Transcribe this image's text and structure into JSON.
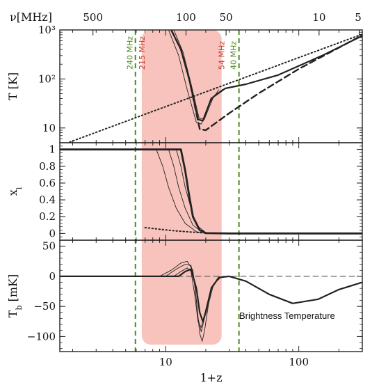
{
  "chart_data": {
    "type": "line",
    "x_axis": {
      "label": "1+z",
      "scale": "log",
      "range": [
        1.6,
        300
      ],
      "ticks": [
        10,
        100
      ],
      "tick_labels": [
        "10",
        "100"
      ]
    },
    "top_axis": {
      "label": "ν[MHz]",
      "ticks_mhz": [
        500,
        100,
        50,
        10,
        5
      ],
      "tick_labels": [
        "500",
        "100",
        "50",
        "10",
        "5"
      ]
    },
    "shaded_band": {
      "from_mhz": 215,
      "to_mhz": 54,
      "color": "#f7c3bc"
    },
    "reference_lines": [
      {
        "label": "240 MHz",
        "mhz": 240,
        "style": "dashed",
        "color": "#4f8a1e"
      },
      {
        "label": "215 MHz",
        "mhz": 215,
        "style": "label-only",
        "color": "#c8392b"
      },
      {
        "label": "54 MHz",
        "mhz": 54,
        "style": "label-only",
        "color": "#c8392b"
      },
      {
        "label": "40 MHz",
        "mhz": 40,
        "style": "dashed",
        "color": "#4f8a1e"
      }
    ],
    "panels": [
      {
        "id": "temperature",
        "ylabel": "T [K]",
        "yscale": "log",
        "ylim": [
          5,
          1000
        ],
        "yticks": [
          10,
          100,
          1000
        ],
        "ytick_labels": [
          "10",
          "10²",
          "10³"
        ],
        "series": [
          {
            "style": "dotted",
            "points": [
              [
                1.7,
                4.6
              ],
              [
                5,
                13.6
              ],
              [
                10,
                27.3
              ],
              [
                50,
                136
              ],
              [
                100,
                273
              ],
              [
                300,
                820
              ]
            ]
          },
          {
            "style": "dashed",
            "points": [
              [
                11,
                1000
              ],
              [
                13,
                400
              ],
              [
                15,
                100
              ],
              [
                18,
                9.5
              ],
              [
                20,
                9
              ],
              [
                30,
                20
              ],
              [
                50,
                51
              ],
              [
                100,
                160
              ],
              [
                300,
                780
              ]
            ]
          },
          {
            "style": "solid",
            "points": [
              [
                11,
                1000
              ],
              [
                13,
                400
              ],
              [
                15,
                100
              ],
              [
                17.5,
                15
              ],
              [
                19,
                14
              ],
              [
                22,
                40
              ],
              [
                28,
                64
              ],
              [
                40,
                78
              ],
              [
                70,
                120
              ],
              [
                150,
                300
              ],
              [
                300,
                760
              ]
            ]
          },
          {
            "style": "thin",
            "points": [
              [
                10.5,
                1000
              ],
              [
                12.5,
                300
              ],
              [
                14.5,
                60
              ],
              [
                17,
                13
              ],
              [
                18.5,
                12
              ],
              [
                21,
                30
              ],
              [
                25,
                60
              ]
            ]
          },
          {
            "style": "thin",
            "points": [
              [
                11.5,
                1000
              ],
              [
                13.5,
                350
              ],
              [
                15.5,
                80
              ],
              [
                17.8,
                16
              ],
              [
                19.5,
                15
              ],
              [
                23,
                45
              ],
              [
                27,
                62
              ]
            ]
          }
        ]
      },
      {
        "id": "ionization",
        "ylabel": "xi",
        "yscale": "linear",
        "ylim": [
          -0.08,
          1.08
        ],
        "yticks": [
          0,
          0.2,
          0.4,
          0.6,
          0.8,
          1
        ],
        "ytick_labels": [
          "0",
          "0.2",
          "0.4",
          "0.6",
          "0.8",
          "1"
        ],
        "series": [
          {
            "style": "thick",
            "points": [
              [
                1.6,
                1
              ],
              [
                13,
                1
              ],
              [
                14,
                0.75
              ],
              [
                15,
                0.45
              ],
              [
                16,
                0.2
              ],
              [
                18,
                0.04
              ],
              [
                20,
                0.004
              ],
              [
                30,
                0
              ],
              [
                300,
                0
              ]
            ]
          },
          {
            "style": "thin",
            "points": [
              [
                8.5,
                1
              ],
              [
                9.5,
                0.8
              ],
              [
                10.5,
                0.55
              ],
              [
                12,
                0.3
              ],
              [
                14,
                0.12
              ],
              [
                17,
                0.02
              ],
              [
                22,
                0
              ],
              [
                300,
                0
              ]
            ]
          },
          {
            "style": "thin",
            "points": [
              [
                10.5,
                1
              ],
              [
                11.5,
                0.8
              ],
              [
                12.5,
                0.55
              ],
              [
                14,
                0.3
              ],
              [
                16,
                0.1
              ],
              [
                19,
                0.01
              ],
              [
                24,
                0
              ]
            ]
          },
          {
            "style": "thin",
            "points": [
              [
                12,
                1
              ],
              [
                13,
                0.8
              ],
              [
                14,
                0.55
              ],
              [
                15.5,
                0.3
              ],
              [
                17,
                0.1
              ],
              [
                20,
                0.01
              ],
              [
                25,
                0
              ]
            ]
          },
          {
            "style": "dotted",
            "points": [
              [
                7,
                0.07
              ],
              [
                9,
                0.05
              ],
              [
                12,
                0.03
              ],
              [
                16,
                0.015
              ],
              [
                20,
                0.005
              ],
              [
                30,
                0
              ]
            ]
          }
        ]
      },
      {
        "id": "brightness",
        "ylabel": "Tb [mK]",
        "yscale": "linear",
        "ylim": [
          -125,
          60
        ],
        "yticks": [
          50,
          0,
          -50,
          -100
        ],
        "ytick_labels": [
          "50",
          "0",
          "−50",
          "−100"
        ],
        "annotation": "Brightness Temperature",
        "series": [
          {
            "style": "dashed-thin",
            "points": [
              [
                1.6,
                0
              ],
              [
                300,
                0
              ]
            ]
          },
          {
            "style": "solid",
            "points": [
              [
                1.6,
                0
              ],
              [
                12.5,
                0
              ],
              [
                14,
                8
              ],
              [
                15.5,
                12
              ],
              [
                17,
                -20
              ],
              [
                18,
                -60
              ],
              [
                19,
                -75
              ],
              [
                20,
                -60
              ],
              [
                22,
                -20
              ],
              [
                25,
                -2
              ],
              [
                30,
                0
              ],
              [
                40,
                -8
              ],
              [
                60,
                -30
              ],
              [
                90,
                -45
              ],
              [
                140,
                -38
              ],
              [
                200,
                -22
              ],
              [
                300,
                -10
              ]
            ]
          },
          {
            "style": "thin",
            "points": [
              [
                1.6,
                0
              ],
              [
                9,
                0
              ],
              [
                11,
                10
              ],
              [
                13,
                22
              ],
              [
                14.5,
                25
              ],
              [
                16,
                10
              ],
              [
                17,
                -40
              ],
              [
                18,
                -95
              ],
              [
                18.8,
                -108
              ],
              [
                19.6,
                -90
              ],
              [
                21,
                -45
              ],
              [
                23,
                -12
              ],
              [
                26,
                -2
              ],
              [
                30,
                0
              ]
            ]
          },
          {
            "style": "thin",
            "points": [
              [
                10,
                0
              ],
              [
                12,
                12
              ],
              [
                14,
                20
              ],
              [
                15.5,
                18
              ],
              [
                16.5,
                -10
              ],
              [
                17.5,
                -70
              ],
              [
                18.5,
                -92
              ],
              [
                20,
                -60
              ],
              [
                22,
                -20
              ],
              [
                25,
                -3
              ]
            ]
          },
          {
            "style": "thin",
            "points": [
              [
                11.5,
                0
              ],
              [
                13,
                8
              ],
              [
                14.5,
                14
              ],
              [
                15.5,
                8
              ],
              [
                16.5,
                -30
              ],
              [
                17.5,
                -75
              ],
              [
                18.5,
                -85
              ],
              [
                20,
                -55
              ],
              [
                22,
                -18
              ],
              [
                25,
                -2
              ]
            ]
          }
        ]
      }
    ]
  }
}
